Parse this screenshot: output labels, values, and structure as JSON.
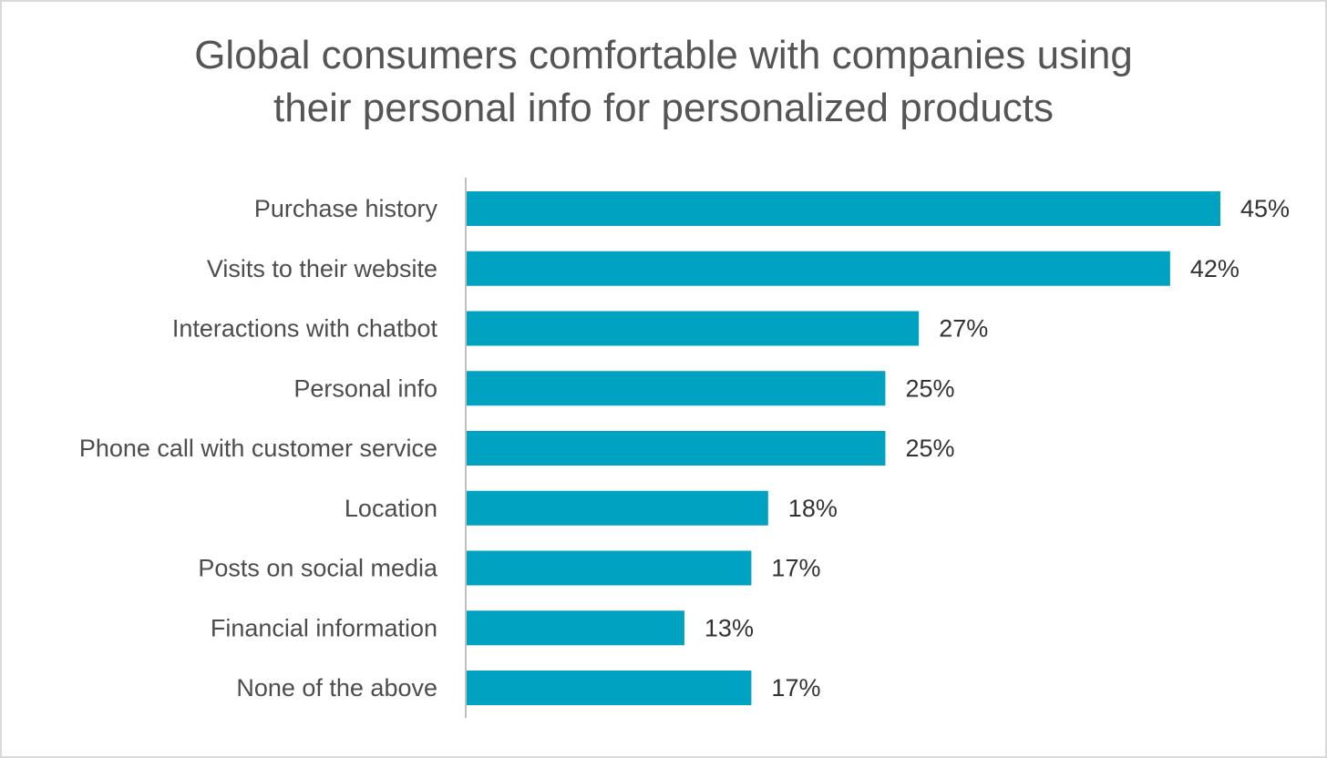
{
  "chart_data": {
    "type": "bar",
    "orientation": "horizontal",
    "title_lines": [
      "Global consumers comfortable with companies using",
      "their personal info for personalized products"
    ],
    "categories": [
      "Purchase history",
      "Visits to their website",
      "Interactions with chatbot",
      "Personal info",
      "Phone call with customer service",
      "Location",
      "Posts on social media",
      "Financial information",
      "None of the above"
    ],
    "values": [
      45,
      42,
      27,
      25,
      25,
      18,
      17,
      13,
      17
    ],
    "value_labels": [
      "45%",
      "42%",
      "27%",
      "25%",
      "25%",
      "18%",
      "17%",
      "13%",
      "17%"
    ],
    "unit": "%",
    "xlim": [
      0,
      45
    ],
    "bar_color": "#00a2c1",
    "grid": false,
    "legend": "none"
  }
}
